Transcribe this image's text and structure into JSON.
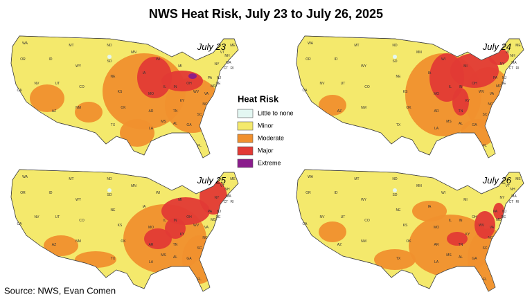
{
  "title": "NWS Heat Risk, July 23 to July 26, 2025",
  "panels": [
    {
      "label": "July 23"
    },
    {
      "label": "July 24"
    },
    {
      "label": "July 25"
    },
    {
      "label": "July 26"
    }
  ],
  "legend": {
    "title": "Heat Risk",
    "items": [
      {
        "label": "Little to none",
        "color": "#e3f7f2"
      },
      {
        "label": "Minor",
        "color": "#f4e96c"
      },
      {
        "label": "Moderate",
        "color": "#f0902e"
      },
      {
        "label": "Major",
        "color": "#e23a35"
      },
      {
        "label": "Extreme",
        "color": "#8a1c8c"
      }
    ]
  },
  "state_labels": [
    "WA",
    "OR",
    "CA",
    "NV",
    "ID",
    "MT",
    "WY",
    "UT",
    "AZ",
    "CO",
    "NM",
    "ND",
    "SD",
    "NE",
    "KS",
    "OK",
    "TX",
    "MN",
    "IA",
    "MO",
    "AR",
    "LA",
    "WI",
    "IL",
    "MI",
    "IN",
    "OH",
    "KY",
    "TN",
    "MS",
    "AL",
    "GA",
    "FL",
    "SC",
    "NC",
    "VA",
    "WV",
    "PA",
    "NY",
    "ME",
    "VT",
    "NH",
    "MA",
    "CT",
    "NJ",
    "MD",
    "DE",
    "RI"
  ],
  "source": "Source: NWS, Evan Comen"
}
